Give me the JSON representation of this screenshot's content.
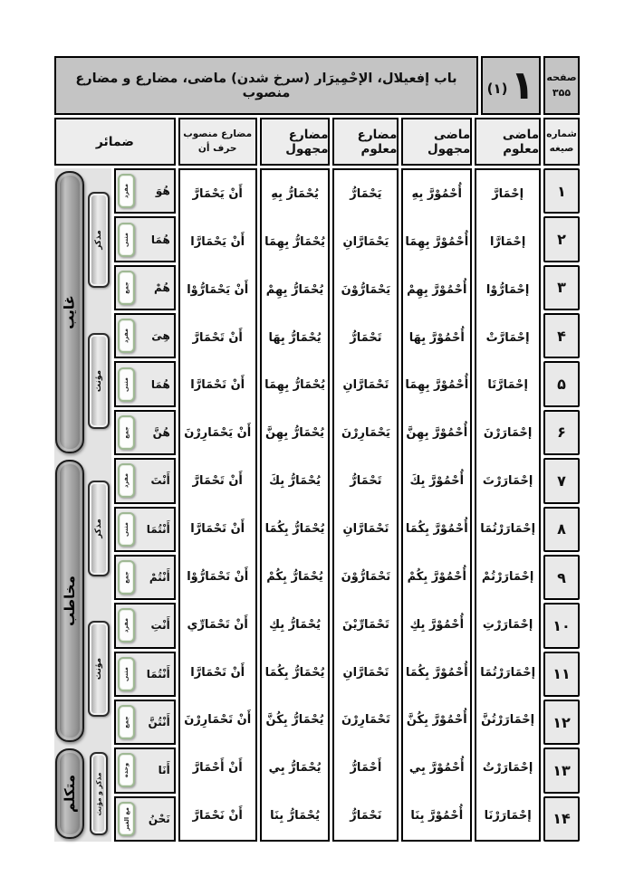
{
  "header": {
    "page_label": "صفحه",
    "page_number": "۳۵۵",
    "lesson_numeral": "۱",
    "lesson_paren": "(۱)",
    "title": "باب إفعيلال، الإحْمِيرَار (سرخ شدن) ماضى، مضارع و مضارع منصوب"
  },
  "columns": {
    "serial_line1": "شماره",
    "serial_line2": "صيغه",
    "past_active": "ماضى معلوم",
    "past_passive": "ماضى مجهول",
    "present_active": "مضارع معلوم",
    "present_passive": "مضارع مجهول",
    "subjunctive_line1": "مضارع منصوب",
    "subjunctive_line2": "حرف أن",
    "pronouns": "ضمائر"
  },
  "groups": [
    {
      "person": "غايب",
      "sub": [
        "مذكر",
        "مؤنث"
      ]
    },
    {
      "person": "مخاطب",
      "sub": [
        "مذكر",
        "مؤنث"
      ]
    },
    {
      "person": "متكلم",
      "sub": [
        "مذكر و مؤنث"
      ]
    }
  ],
  "rows": [
    {
      "num": "۱",
      "past_active": "إحْمَارَّ",
      "past_passive": "أُحْمُوْرَّ بِهِ",
      "present_active": "يَحْمَارُّ",
      "present_passive": "يُحْمَارُّ بِهِ",
      "subjunctive": "أَنْ يَحْمَارَّ",
      "pronoun": "هُوَ",
      "number_tag": "مفرد"
    },
    {
      "num": "۲",
      "past_active": "إحْمَارَّا",
      "past_passive": "أُحْمُوْرَّ بِهِمَا",
      "present_active": "يَحْمَارَّانِ",
      "present_passive": "يُحْمَارُّ بِهِمَا",
      "subjunctive": "أَنْ يَحْمَارَّا",
      "pronoun": "هُمَا",
      "number_tag": "مثنى"
    },
    {
      "num": "۳",
      "past_active": "إحْمَارُّوْا",
      "past_passive": "أُحْمُوْرَّ بِهِمْ",
      "present_active": "يَحْمَارُّوْنَ",
      "present_passive": "يُحْمَارُّ بِهِمْ",
      "subjunctive": "أَنْ يَحْمَارُّوْا",
      "pronoun": "هُمْ",
      "number_tag": "جمع"
    },
    {
      "num": "۴",
      "past_active": "إحْمَارَّتْ",
      "past_passive": "أُحْمُوْرَّ بِهَا",
      "present_active": "تَحْمَارُّ",
      "present_passive": "يُحْمَارُّ بِهَا",
      "subjunctive": "أَنْ تَحْمَارَّ",
      "pronoun": "هِىَ",
      "number_tag": "مفرد"
    },
    {
      "num": "۵",
      "past_active": "إحْمَارَّتَا",
      "past_passive": "أُحْمُوْرَّ بِهِمَا",
      "present_active": "تَحْمَارَّانِ",
      "present_passive": "يُحْمَارُّ بِهِمَا",
      "subjunctive": "أَنْ تَحْمَارَّا",
      "pronoun": "هُمَا",
      "number_tag": "مثنى"
    },
    {
      "num": "۶",
      "past_active": "إحْمَارَرْنَ",
      "past_passive": "أُحْمُوْرَّ بِهِنَّ",
      "present_active": "يَحْمَارِرْنَ",
      "present_passive": "يُحْمَارُّ بِهِنَّ",
      "subjunctive": "أَنْ يَحْمَارِرْنَ",
      "pronoun": "هُنَّ",
      "number_tag": "جمع"
    },
    {
      "num": "۷",
      "past_active": "إحْمَارَرْتَ",
      "past_passive": "أُحْمُوْرَّ بِكَ",
      "present_active": "تَحْمَارُّ",
      "present_passive": "يُحْمَارُّ بِكَ",
      "subjunctive": "أَنْ تَحْمَارَّ",
      "pronoun": "أَنْتَ",
      "number_tag": "مفرد"
    },
    {
      "num": "۸",
      "past_active": "إحْمَارَرْتُمَا",
      "past_passive": "أُحْمُوْرَّ بِكُمَا",
      "present_active": "تَحْمَارَّانِ",
      "present_passive": "يُحْمَارُّ بِكُمَا",
      "subjunctive": "أَنْ تَحْمَارَّا",
      "pronoun": "أَنْتُمَا",
      "number_tag": "مثنى"
    },
    {
      "num": "۹",
      "past_active": "إحْمَارَرْتُمْ",
      "past_passive": "أُحْمُوْرَّ بِكُمْ",
      "present_active": "تَحْمَارُّوْنَ",
      "present_passive": "يُحْمَارُّ بِكُمْ",
      "subjunctive": "أَنْ تَحْمَارُّوْا",
      "pronoun": "أَنْتُمْ",
      "number_tag": "جمع"
    },
    {
      "num": "۱۰",
      "past_active": "إحْمَارَرْتِ",
      "past_passive": "أُحْمُوْرَّ بِكِ",
      "present_active": "تَحْمَارِّيْنَ",
      "present_passive": "يُحْمَارُّ بِكِ",
      "subjunctive": "أَنْ تَحْمَارِّي",
      "pronoun": "أَنْتِ",
      "number_tag": "مفرد"
    },
    {
      "num": "۱۱",
      "past_active": "إحْمَارَرْتُمَا",
      "past_passive": "أُحْمُوْرَّ بِكُمَا",
      "present_active": "تَحْمَارَّانِ",
      "present_passive": "يُحْمَارُّ بِكُمَا",
      "subjunctive": "أَنْ تَحْمَارَّا",
      "pronoun": "أَنْتُمَا",
      "number_tag": "مثنى"
    },
    {
      "num": "۱۲",
      "past_active": "إحْمَارَرْتُنَّ",
      "past_passive": "أُحْمُوْرَّ بِكُنَّ",
      "present_active": "تَحْمَارِرْنَ",
      "present_passive": "يُحْمَارُّ بِكُنَّ",
      "subjunctive": "أَنْ تَحْمَارِرْنَ",
      "pronoun": "أَنْتُنَّ",
      "number_tag": "جمع"
    },
    {
      "num": "۱۳",
      "past_active": "إحْمَارَرْتُ",
      "past_passive": "أُحْمُوْرَّ بِي",
      "present_active": "أَحْمَارُّ",
      "present_passive": "يُحْمَارُّ بِي",
      "subjunctive": "أَنْ أَحْمَارَّ",
      "pronoun": "أَنَا",
      "number_tag": "وحده"
    },
    {
      "num": "۱۴",
      "past_active": "إحْمَارَرْنَا",
      "past_passive": "أُحْمُوْرَّ بِنَا",
      "present_active": "نَحْمَارُّ",
      "present_passive": "يُحْمَارُّ بِنَا",
      "subjunctive": "أَنْ نَحْمَارَّ",
      "pronoun": "نَحْنُ",
      "number_tag": "مع الغير"
    }
  ],
  "colors": {
    "title_band_gray": "#c4c4c4",
    "header_cell_gray": "#ededed",
    "row_cell_gray": "#e9e9e9",
    "chip_border_green": "#9fb894",
    "pill_gray": "#a3a3a3"
  }
}
